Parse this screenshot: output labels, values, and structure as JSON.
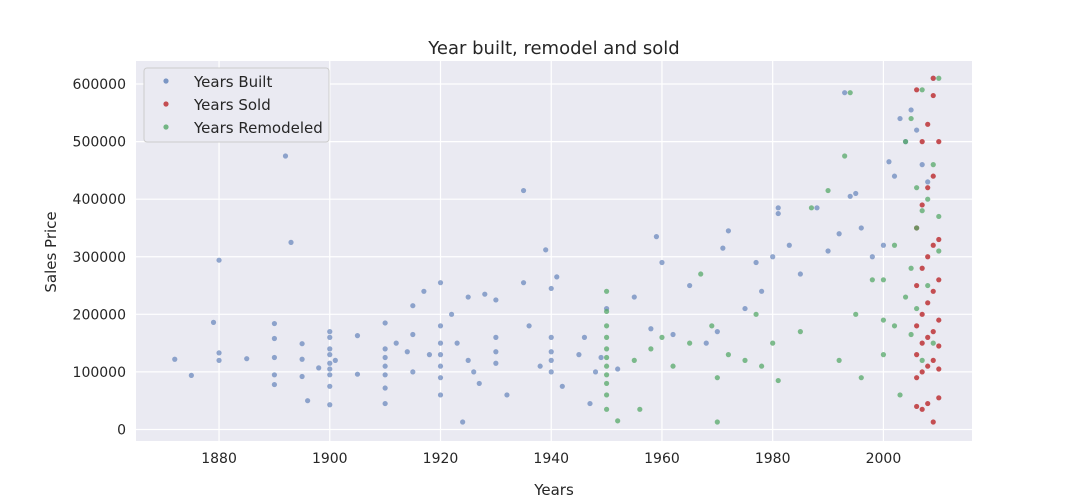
{
  "chart_data": {
    "type": "scatter",
    "title": "Year built, remodel and sold",
    "xlabel": "Years",
    "ylabel": "Sales Price",
    "xlim": [
      1865,
      2016
    ],
    "ylim": [
      -20000,
      640000
    ],
    "x_ticks": [
      1880,
      1900,
      1920,
      1940,
      1960,
      1980,
      2000
    ],
    "y_ticks": [
      0,
      100000,
      200000,
      300000,
      400000,
      500000,
      600000
    ],
    "grid": true,
    "legend_position": "top-left",
    "series": [
      {
        "name": "Years Built",
        "color": "#4c72b0",
        "opacity": 0.6,
        "points": [
          [
            1872,
            122000
          ],
          [
            1875,
            94000
          ],
          [
            1879,
            186000
          ],
          [
            1880,
            294000
          ],
          [
            1880,
            133000
          ],
          [
            1880,
            120000
          ],
          [
            1885,
            123000
          ],
          [
            1890,
            184000
          ],
          [
            1890,
            158000
          ],
          [
            1890,
            125000
          ],
          [
            1890,
            95000
          ],
          [
            1890,
            78000
          ],
          [
            1892,
            475000
          ],
          [
            1893,
            325000
          ],
          [
            1895,
            149000
          ],
          [
            1895,
            122000
          ],
          [
            1895,
            92000
          ],
          [
            1896,
            50000
          ],
          [
            1898,
            107000
          ],
          [
            1900,
            170000
          ],
          [
            1900,
            160000
          ],
          [
            1900,
            140000
          ],
          [
            1900,
            130000
          ],
          [
            1900,
            115000
          ],
          [
            1900,
            105000
          ],
          [
            1900,
            95000
          ],
          [
            1900,
            75000
          ],
          [
            1900,
            43000
          ],
          [
            1901,
            120000
          ],
          [
            1905,
            163000
          ],
          [
            1905,
            96000
          ],
          [
            1910,
            185000
          ],
          [
            1910,
            140000
          ],
          [
            1910,
            125000
          ],
          [
            1910,
            110000
          ],
          [
            1910,
            95000
          ],
          [
            1910,
            72000
          ],
          [
            1910,
            45000
          ],
          [
            1912,
            150000
          ],
          [
            1914,
            135000
          ],
          [
            1915,
            215000
          ],
          [
            1915,
            165000
          ],
          [
            1915,
            100000
          ],
          [
            1917,
            240000
          ],
          [
            1918,
            130000
          ],
          [
            1920,
            255000
          ],
          [
            1920,
            180000
          ],
          [
            1920,
            150000
          ],
          [
            1920,
            130000
          ],
          [
            1920,
            110000
          ],
          [
            1920,
            90000
          ],
          [
            1920,
            60000
          ],
          [
            1922,
            200000
          ],
          [
            1923,
            150000
          ],
          [
            1924,
            13000
          ],
          [
            1925,
            230000
          ],
          [
            1925,
            120000
          ],
          [
            1926,
            100000
          ],
          [
            1927,
            80000
          ],
          [
            1928,
            235000
          ],
          [
            1930,
            225000
          ],
          [
            1930,
            160000
          ],
          [
            1930,
            135000
          ],
          [
            1930,
            115000
          ],
          [
            1932,
            60000
          ],
          [
            1935,
            415000
          ],
          [
            1935,
            255000
          ],
          [
            1936,
            180000
          ],
          [
            1938,
            110000
          ],
          [
            1939,
            312000
          ],
          [
            1940,
            245000
          ],
          [
            1940,
            160000
          ],
          [
            1940,
            135000
          ],
          [
            1940,
            120000
          ],
          [
            1940,
            100000
          ],
          [
            1941,
            265000
          ],
          [
            1942,
            75000
          ],
          [
            1945,
            130000
          ],
          [
            1946,
            160000
          ],
          [
            1947,
            45000
          ],
          [
            1948,
            100000
          ],
          [
            1949,
            125000
          ],
          [
            1950,
            210000
          ],
          [
            1952,
            105000
          ],
          [
            1955,
            230000
          ],
          [
            1958,
            175000
          ],
          [
            1959,
            335000
          ],
          [
            1960,
            290000
          ],
          [
            1962,
            165000
          ],
          [
            1965,
            250000
          ],
          [
            1968,
            150000
          ],
          [
            1970,
            170000
          ],
          [
            1971,
            315000
          ],
          [
            1972,
            345000
          ],
          [
            1975,
            210000
          ],
          [
            1977,
            290000
          ],
          [
            1978,
            240000
          ],
          [
            1980,
            300000
          ],
          [
            1981,
            385000
          ],
          [
            1981,
            375000
          ],
          [
            1983,
            320000
          ],
          [
            1985,
            270000
          ],
          [
            1988,
            385000
          ],
          [
            1990,
            310000
          ],
          [
            1992,
            340000
          ],
          [
            1993,
            585000
          ],
          [
            1994,
            405000
          ],
          [
            1995,
            410000
          ],
          [
            1996,
            350000
          ],
          [
            1998,
            300000
          ],
          [
            2000,
            320000
          ],
          [
            2001,
            465000
          ],
          [
            2002,
            440000
          ],
          [
            2003,
            540000
          ],
          [
            2004,
            500000
          ],
          [
            2005,
            555000
          ],
          [
            2006,
            520000
          ],
          [
            2007,
            460000
          ],
          [
            2008,
            430000
          ],
          [
            2009,
            610000
          ]
        ]
      },
      {
        "name": "Years Sold",
        "color": "#c44e52",
        "opacity": 1.0,
        "points": [
          [
            2006,
            40000
          ],
          [
            2006,
            90000
          ],
          [
            2006,
            130000
          ],
          [
            2006,
            180000
          ],
          [
            2006,
            250000
          ],
          [
            2006,
            350000
          ],
          [
            2006,
            590000
          ],
          [
            2007,
            35000
          ],
          [
            2007,
            100000
          ],
          [
            2007,
            150000
          ],
          [
            2007,
            200000
          ],
          [
            2007,
            280000
          ],
          [
            2007,
            390000
          ],
          [
            2007,
            500000
          ],
          [
            2008,
            45000
          ],
          [
            2008,
            110000
          ],
          [
            2008,
            160000
          ],
          [
            2008,
            220000
          ],
          [
            2008,
            300000
          ],
          [
            2008,
            420000
          ],
          [
            2008,
            530000
          ],
          [
            2009,
            13000
          ],
          [
            2009,
            120000
          ],
          [
            2009,
            170000
          ],
          [
            2009,
            240000
          ],
          [
            2009,
            320000
          ],
          [
            2009,
            440000
          ],
          [
            2009,
            580000
          ],
          [
            2009,
            610000
          ],
          [
            2010,
            55000
          ],
          [
            2010,
            105000
          ],
          [
            2010,
            145000
          ],
          [
            2010,
            190000
          ],
          [
            2010,
            260000
          ],
          [
            2010,
            330000
          ],
          [
            2010,
            500000
          ]
        ]
      },
      {
        "name": "Years Remodeled",
        "color": "#55a868",
        "opacity": 0.75,
        "points": [
          [
            1950,
            35000
          ],
          [
            1950,
            60000
          ],
          [
            1950,
            80000
          ],
          [
            1950,
            95000
          ],
          [
            1950,
            110000
          ],
          [
            1950,
            125000
          ],
          [
            1950,
            140000
          ],
          [
            1950,
            160000
          ],
          [
            1950,
            180000
          ],
          [
            1950,
            205000
          ],
          [
            1950,
            240000
          ],
          [
            1952,
            15000
          ],
          [
            1955,
            120000
          ],
          [
            1956,
            35000
          ],
          [
            1958,
            140000
          ],
          [
            1960,
            160000
          ],
          [
            1962,
            110000
          ],
          [
            1965,
            150000
          ],
          [
            1967,
            270000
          ],
          [
            1969,
            180000
          ],
          [
            1970,
            13000
          ],
          [
            1970,
            90000
          ],
          [
            1972,
            130000
          ],
          [
            1975,
            120000
          ],
          [
            1977,
            200000
          ],
          [
            1978,
            110000
          ],
          [
            1980,
            150000
          ],
          [
            1981,
            85000
          ],
          [
            1985,
            170000
          ],
          [
            1987,
            385000
          ],
          [
            1990,
            415000
          ],
          [
            1992,
            120000
          ],
          [
            1993,
            475000
          ],
          [
            1994,
            585000
          ],
          [
            1995,
            200000
          ],
          [
            1996,
            90000
          ],
          [
            1998,
            260000
          ],
          [
            2000,
            130000
          ],
          [
            2000,
            190000
          ],
          [
            2000,
            260000
          ],
          [
            2002,
            180000
          ],
          [
            2002,
            320000
          ],
          [
            2003,
            60000
          ],
          [
            2004,
            230000
          ],
          [
            2004,
            500000
          ],
          [
            2005,
            165000
          ],
          [
            2005,
            280000
          ],
          [
            2005,
            540000
          ],
          [
            2006,
            210000
          ],
          [
            2006,
            350000
          ],
          [
            2006,
            420000
          ],
          [
            2007,
            120000
          ],
          [
            2007,
            380000
          ],
          [
            2007,
            590000
          ],
          [
            2008,
            250000
          ],
          [
            2008,
            400000
          ],
          [
            2009,
            150000
          ],
          [
            2009,
            460000
          ],
          [
            2010,
            310000
          ],
          [
            2010,
            370000
          ],
          [
            2010,
            610000
          ]
        ]
      }
    ]
  }
}
